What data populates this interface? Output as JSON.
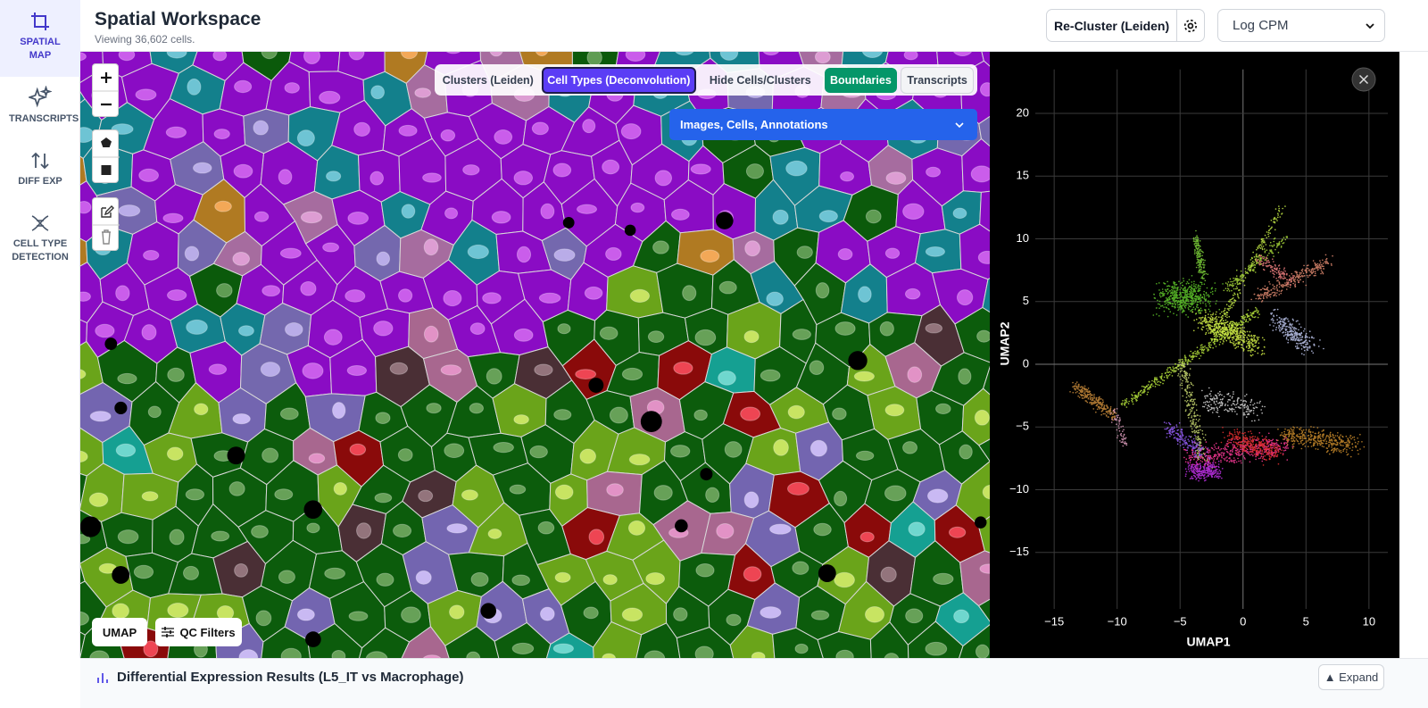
{
  "header": {
    "title": "Spatial Workspace",
    "subtitle": "Viewing 36,602 cells."
  },
  "sidebar": {
    "items": [
      "SPATIAL MAP",
      "TRANSCRIPTS",
      "DIFF EXP",
      "CELL TYPE DETECTION"
    ]
  },
  "toolbar": {
    "recluster": "Re-Cluster (Leiden)",
    "normalization": "Log CPM"
  },
  "map": {
    "layers": [
      "Clusters (Leiden)",
      "Cell Types (Deconvolution)",
      "Hide Cells/Clusters"
    ],
    "toggles": [
      "Boundaries",
      "Transcripts"
    ],
    "panel": "Images, Cells, Annotations",
    "bottom_buttons": [
      "UMAP",
      "QC Filters"
    ]
  },
  "chart_data": {
    "type": "scatter",
    "x_label": "UMAP1",
    "y_label": "UMAP2",
    "xlim": [
      -16.5,
      11.5
    ],
    "ylim": [
      -19.5,
      23.5
    ],
    "xticks": [
      {
        "value": -15,
        "label": "−15"
      },
      {
        "value": -10,
        "label": "−10"
      },
      {
        "value": -5,
        "label": "−5"
      },
      0,
      5,
      10
    ],
    "yticks": [
      {
        "value": -15,
        "label": "−15"
      },
      {
        "value": -10,
        "label": "−10"
      },
      {
        "value": -5,
        "label": "−5"
      },
      0,
      5,
      10,
      15,
      20
    ],
    "grid": true
  },
  "footer": {
    "title": "Differential Expression Results (L5_IT vs Macrophage)",
    "expand": "▲ Expand"
  }
}
